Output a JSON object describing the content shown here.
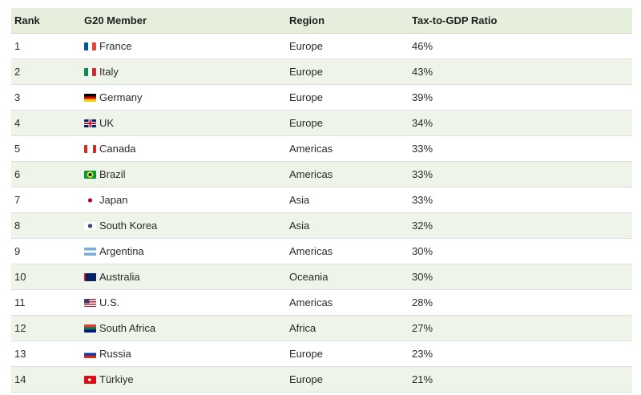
{
  "headers": {
    "rank": "Rank",
    "member": "G20 Member",
    "region": "Region",
    "ratio": "Tax-to-GDP Ratio"
  },
  "rows": [
    {
      "rank": "1",
      "member": "France",
      "region": "Europe",
      "ratio": "46%",
      "flag": "france-flag-icon"
    },
    {
      "rank": "2",
      "member": "Italy",
      "region": "Europe",
      "ratio": "43%",
      "flag": "italy-flag-icon"
    },
    {
      "rank": "3",
      "member": "Germany",
      "region": "Europe",
      "ratio": "39%",
      "flag": "germany-flag-icon"
    },
    {
      "rank": "4",
      "member": "UK",
      "region": "Europe",
      "ratio": "34%",
      "flag": "uk-flag-icon"
    },
    {
      "rank": "5",
      "member": "Canada",
      "region": "Americas",
      "ratio": "33%",
      "flag": "canada-flag-icon"
    },
    {
      "rank": "6",
      "member": "Brazil",
      "region": "Americas",
      "ratio": "33%",
      "flag": "brazil-flag-icon"
    },
    {
      "rank": "7",
      "member": "Japan",
      "region": "Asia",
      "ratio": "33%",
      "flag": "japan-flag-icon"
    },
    {
      "rank": "8",
      "member": "South Korea",
      "region": "Asia",
      "ratio": "32%",
      "flag": "south-korea-flag-icon"
    },
    {
      "rank": "9",
      "member": "Argentina",
      "region": "Americas",
      "ratio": "30%",
      "flag": "argentina-flag-icon"
    },
    {
      "rank": "10",
      "member": "Australia",
      "region": "Oceania",
      "ratio": "30%",
      "flag": "australia-flag-icon"
    },
    {
      "rank": "11",
      "member": "U.S.",
      "region": "Americas",
      "ratio": "28%",
      "flag": "us-flag-icon"
    },
    {
      "rank": "12",
      "member": "South Africa",
      "region": "Africa",
      "ratio": "27%",
      "flag": "south-africa-flag-icon"
    },
    {
      "rank": "13",
      "member": "Russia",
      "region": "Europe",
      "ratio": "23%",
      "flag": "russia-flag-icon"
    },
    {
      "rank": "14",
      "member": "Türkiye",
      "region": "Europe",
      "ratio": "21%",
      "flag": "turkiye-flag-icon"
    }
  ],
  "colors": {
    "header_bg": "#e6efdb",
    "alt_row_bg": "#eef4e7"
  }
}
